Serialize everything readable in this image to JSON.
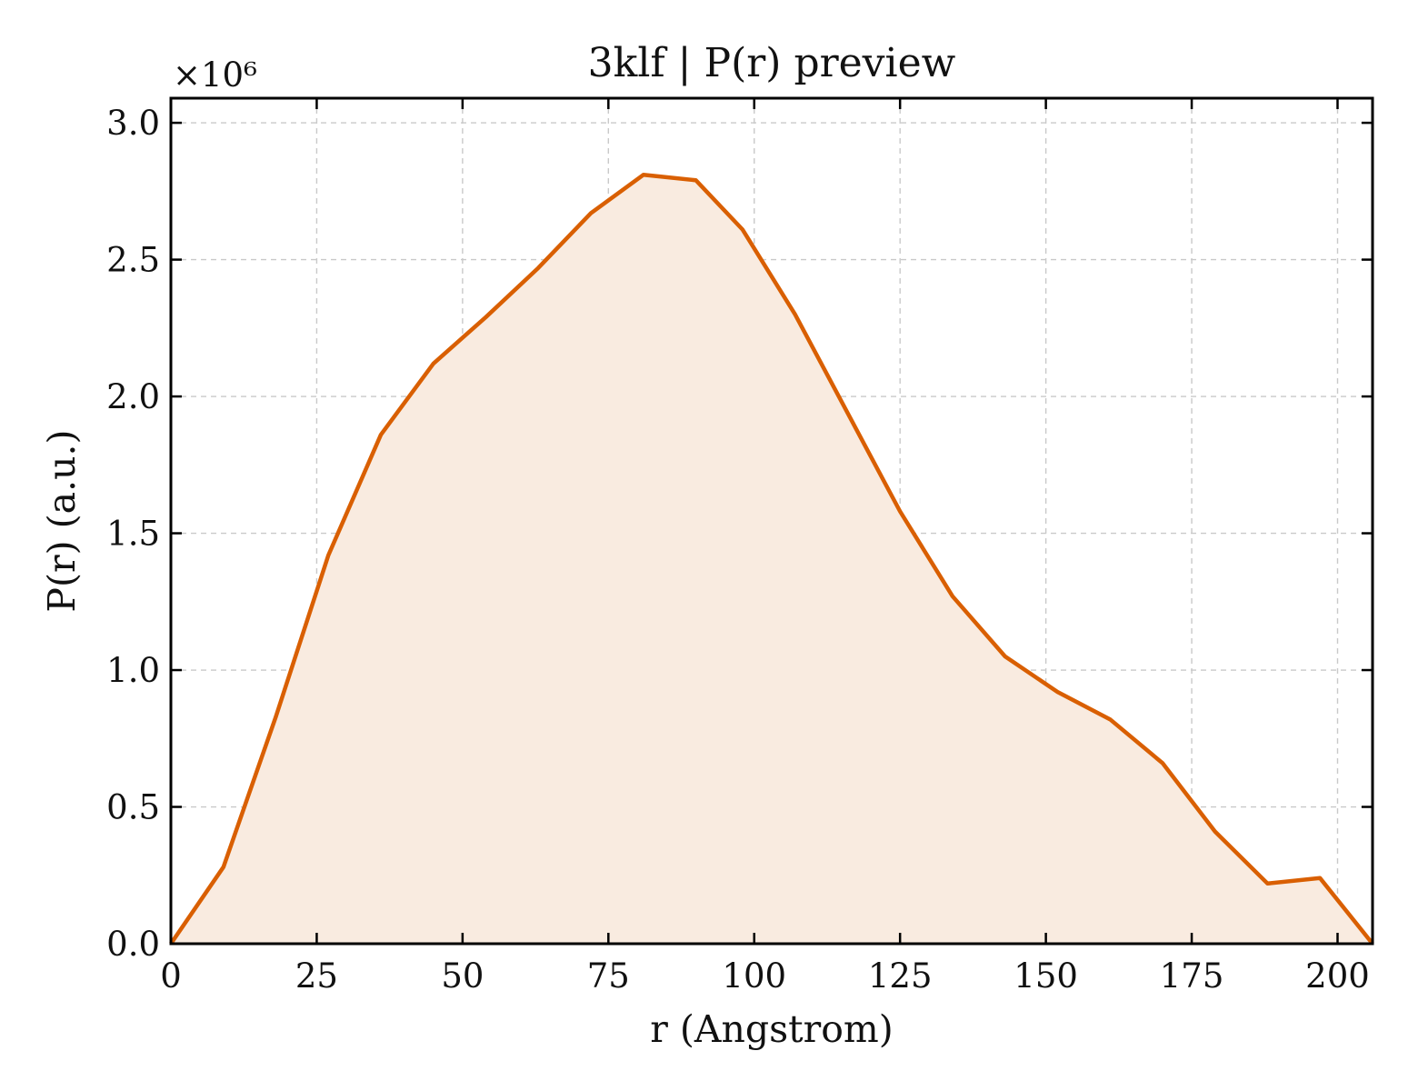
{
  "chart_data": {
    "type": "area",
    "title": "3klf | P(r) preview",
    "xlabel": "r (Angstrom)",
    "ylabel": "P(r) (a.u.)",
    "y_multiplier_label": "×10⁶",
    "y_multiplier": 1000000,
    "xlim": [
      0,
      206
    ],
    "ylim": [
      0,
      3.09
    ],
    "xticks": [
      0,
      25,
      50,
      75,
      100,
      125,
      150,
      175,
      200
    ],
    "xtick_labels": [
      "0",
      "25",
      "50",
      "75",
      "100",
      "125",
      "150",
      "175",
      "200"
    ],
    "yticks": [
      0,
      0.5,
      1.0,
      1.5,
      2.0,
      2.5,
      3.0
    ],
    "ytick_labels": [
      "0.0",
      "0.5",
      "1.0",
      "1.5",
      "2.0",
      "2.5",
      "3.0"
    ],
    "grid": true,
    "series": [
      {
        "color": "#d95f02",
        "fill_color": "#f9ebe0",
        "x": [
          0,
          9,
          18,
          27,
          36,
          45,
          54,
          63,
          72,
          81,
          90,
          98,
          107,
          116,
          125,
          134,
          143,
          152,
          161,
          170,
          179,
          188,
          197,
          206
        ],
        "y": [
          0.0,
          0.28,
          0.83,
          1.42,
          1.86,
          2.12,
          2.29,
          2.47,
          2.67,
          2.81,
          2.79,
          2.61,
          2.3,
          1.94,
          1.58,
          1.27,
          1.05,
          0.92,
          0.82,
          0.66,
          0.41,
          0.22,
          0.24,
          0.0
        ]
      }
    ]
  }
}
